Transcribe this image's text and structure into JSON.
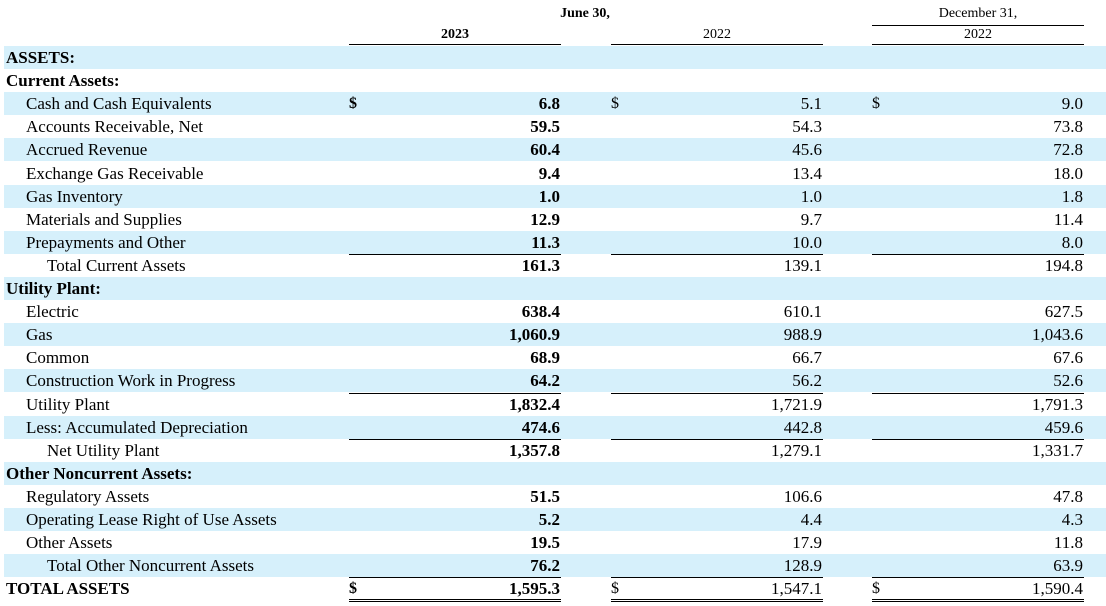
{
  "header": {
    "group1": "June 30,",
    "group2": "December 31,",
    "col1_year": "2023",
    "col2_year": "2022",
    "col3_year": "2022"
  },
  "rows": [
    {
      "label": "ASSETS:",
      "style": "heading",
      "shade": true
    },
    {
      "label": "Current Assets:",
      "style": "heading",
      "shade": false
    },
    {
      "label": "Cash and Cash Equivalents",
      "indent": 1,
      "shade": true,
      "dollar": true,
      "values": [
        "6.8",
        "5.1",
        "9.0"
      ]
    },
    {
      "label": "Accounts Receivable, Net",
      "indent": 1,
      "shade": false,
      "values": [
        "59.5",
        "54.3",
        "73.8"
      ]
    },
    {
      "label": "Accrued Revenue",
      "indent": 1,
      "shade": true,
      "values": [
        "60.4",
        "45.6",
        "72.8"
      ]
    },
    {
      "label": "Exchange Gas Receivable",
      "indent": 1,
      "shade": false,
      "values": [
        "9.4",
        "13.4",
        "18.0"
      ]
    },
    {
      "label": "Gas Inventory",
      "indent": 1,
      "shade": true,
      "values": [
        "1.0",
        "1.0",
        "1.8"
      ]
    },
    {
      "label": "Materials and Supplies",
      "indent": 1,
      "shade": false,
      "values": [
        "12.9",
        "9.7",
        "11.4"
      ]
    },
    {
      "label": "Prepayments and Other",
      "indent": 1,
      "shade": true,
      "values": [
        "11.3",
        "10.0",
        "8.0"
      ]
    },
    {
      "label": "Total Current Assets",
      "indent": 2,
      "shade": false,
      "values": [
        "161.3",
        "139.1",
        "194.8"
      ]
    },
    {
      "label": "Utility Plant:",
      "style": "heading",
      "shade": true
    },
    {
      "label": "Electric",
      "indent": 1,
      "shade": false,
      "values": [
        "638.4",
        "610.1",
        "627.5"
      ]
    },
    {
      "label": "Gas",
      "indent": 1,
      "shade": true,
      "values": [
        "1,060.9",
        "988.9",
        "1,043.6"
      ]
    },
    {
      "label": "Common",
      "indent": 1,
      "shade": false,
      "values": [
        "68.9",
        "66.7",
        "67.6"
      ]
    },
    {
      "label": "Construction Work in Progress",
      "indent": 1,
      "shade": true,
      "values": [
        "64.2",
        "56.2",
        "52.6"
      ]
    },
    {
      "label": "Utility Plant",
      "indent": 1,
      "shade": false,
      "values": [
        "1,832.4",
        "1,721.9",
        "1,791.3"
      ]
    },
    {
      "label": "Less: Accumulated Depreciation",
      "indent": 1,
      "shade": true,
      "values": [
        "474.6",
        "442.8",
        "459.6"
      ]
    },
    {
      "label": "Net Utility Plant",
      "indent": 2,
      "shade": false,
      "values": [
        "1,357.8",
        "1,279.1",
        "1,331.7"
      ]
    },
    {
      "label": "Other Noncurrent Assets:",
      "style": "heading",
      "shade": true
    },
    {
      "label": "Regulatory Assets",
      "indent": 1,
      "shade": false,
      "values": [
        "51.5",
        "106.6",
        "47.8"
      ]
    },
    {
      "label": "Operating Lease Right of Use Assets",
      "indent": 1,
      "shade": true,
      "values": [
        "5.2",
        "4.4",
        "4.3"
      ]
    },
    {
      "label": "Other Assets",
      "indent": 1,
      "shade": false,
      "values": [
        "19.5",
        "17.9",
        "11.8"
      ]
    },
    {
      "label": "Total Other Noncurrent Assets",
      "indent": 2,
      "shade": true,
      "values": [
        "76.2",
        "128.9",
        "63.9"
      ]
    },
    {
      "label": "TOTAL ASSETS",
      "style": "heading",
      "shade": false,
      "dollar": true,
      "values": [
        "1,595.3",
        "1,547.1",
        "1,590.4"
      ]
    }
  ],
  "dollar_sign": "$"
}
